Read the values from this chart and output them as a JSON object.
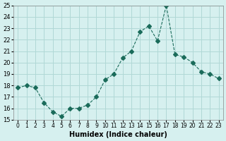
{
  "x": [
    0,
    1,
    2,
    3,
    4,
    5,
    6,
    7,
    8,
    9,
    10,
    11,
    12,
    13,
    14,
    15,
    16,
    17,
    18,
    19,
    20,
    21,
    22,
    23
  ],
  "y": [
    17.8,
    18.0,
    17.8,
    16.5,
    15.7,
    15.3,
    16.0,
    16.0,
    16.3,
    17.0,
    18.5,
    19.0,
    20.4,
    21.0,
    22.7,
    23.2,
    21.9,
    25.0,
    20.7,
    20.5,
    20.0,
    19.2,
    19.0,
    18.6
  ],
  "xlim": [
    -0.5,
    23.5
  ],
  "ylim": [
    15,
    25
  ],
  "yticks": [
    15,
    16,
    17,
    18,
    19,
    20,
    21,
    22,
    23,
    24,
    25
  ],
  "xticks": [
    0,
    1,
    2,
    3,
    4,
    5,
    6,
    7,
    8,
    9,
    10,
    11,
    12,
    13,
    14,
    15,
    16,
    17,
    18,
    19,
    20,
    21,
    22,
    23
  ],
  "xlabel": "Humidex (Indice chaleur)",
  "line_color": "#1a6b5a",
  "marker": "D",
  "marker_size": 3,
  "line_width": 0.8,
  "background_color": "#d6f0ef",
  "grid_color": "#b0d8d6"
}
